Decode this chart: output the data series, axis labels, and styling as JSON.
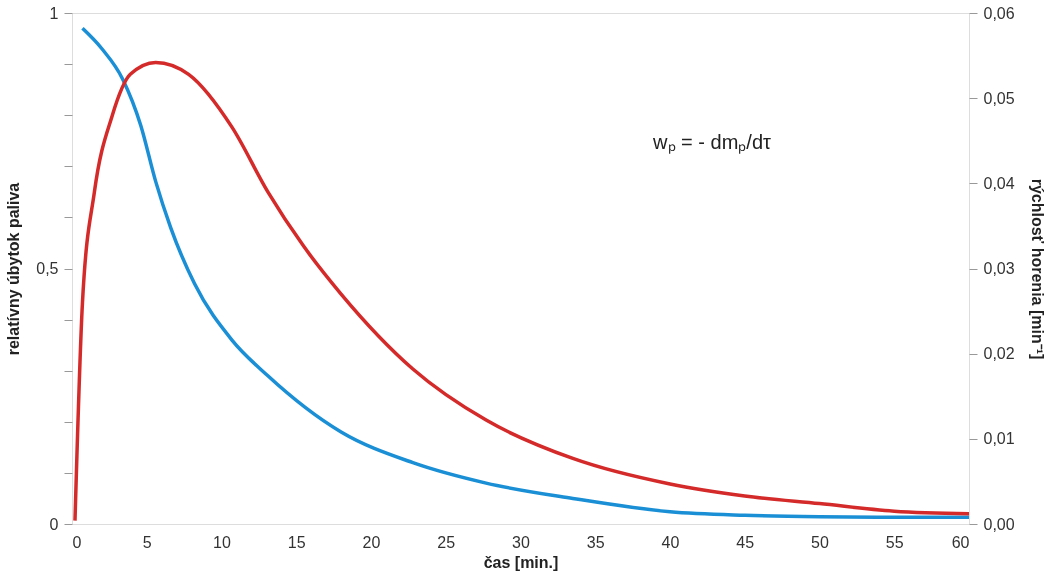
{
  "chart_data": {
    "type": "line",
    "xlabel": "čas [min.]",
    "ylabel": "relatívny úbytok  paliva",
    "y2label": "rýchlosť horenia [min⁻¹]",
    "annotations": [
      "wₚ = - dmₚ/dτ"
    ],
    "xlim": [
      0,
      60
    ],
    "xticks": [
      0,
      5,
      10,
      15,
      20,
      25,
      30,
      35,
      40,
      45,
      50,
      55,
      60
    ],
    "ylim": [
      0,
      1
    ],
    "yticks": [
      0,
      {
        "value": 0.1,
        "label": null
      },
      {
        "value": 0.2,
        "label": null
      },
      {
        "value": 0.3,
        "label": null
      },
      {
        "value": 0.4,
        "label": null
      },
      {
        "value": 0.5,
        "label": "0,5"
      },
      {
        "value": 0.6,
        "label": null
      },
      {
        "value": 0.7,
        "label": null
      },
      {
        "value": 0.8,
        "label": null
      },
      {
        "value": 0.9,
        "label": null
      },
      1
    ],
    "y2lim": [
      0,
      0.06
    ],
    "y2ticks": [
      {
        "value": 0,
        "label": "0,00"
      },
      {
        "value": 0.01,
        "label": "0,01"
      },
      {
        "value": 0.02,
        "label": "0,02"
      },
      {
        "value": 0.03,
        "label": "0,03"
      },
      {
        "value": 0.04,
        "label": "0,04"
      },
      {
        "value": 0.05,
        "label": "0,05"
      },
      {
        "value": 0.06,
        "label": "0,06"
      }
    ],
    "grid": false,
    "line_style": "solid",
    "marker": "none",
    "series": [
      {
        "color": "#1a8fd6",
        "x": [
          0.7,
          2,
          3.4,
          4.6,
          5.6,
          6.6,
          8.2,
          10.7,
          13.1,
          18,
          22.8,
          27.7,
          33.5,
          40,
          45,
          50,
          55,
          60
        ],
        "values": [
          0.97,
          0.93,
          0.87,
          0.78,
          0.67,
          0.58,
          0.47,
          0.36,
          0.29,
          0.18,
          0.12,
          0.08,
          0.05,
          0.024,
          0.017,
          0.014,
          0.013,
          0.013
        ]
      },
      {
        "color": "#d42a2a",
        "axis": "y2",
        "x": [
          0.2,
          0.7,
          1.5,
          2.7,
          3.9,
          5.6,
          7.8,
          10.7,
          13.1,
          15.5,
          18,
          22.8,
          27.7,
          33.5,
          40,
          45,
          50,
          55,
          60
        ],
        "values": [
          0.0004,
          0.026,
          0.039,
          0.048,
          0.0528,
          0.0542,
          0.0528,
          0.0466,
          0.039,
          0.0326,
          0.027,
          0.0182,
          0.0122,
          0.0077,
          0.0047,
          0.0033,
          0.0024,
          0.0015,
          0.0012
        ]
      }
    ]
  }
}
